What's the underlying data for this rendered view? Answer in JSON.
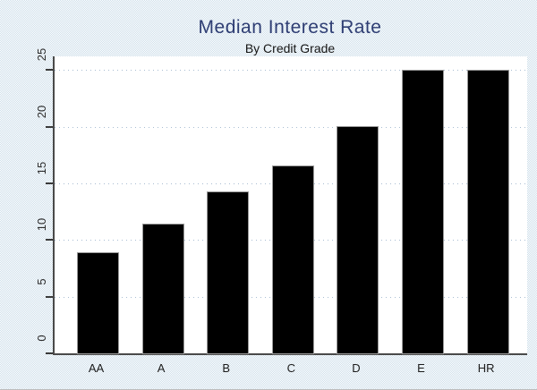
{
  "window": {
    "background_tint": "#cddeea",
    "plot_background": "#ffffff",
    "axis_color": "#4a4a4a",
    "gridline_color": "#a9bdd2",
    "title_color": "#2e3d73"
  },
  "chart_data": {
    "type": "bar",
    "title": "Median Interest Rate",
    "subtitle": "By Credit Grade",
    "categories": [
      "AA",
      "A",
      "B",
      "C",
      "D",
      "E",
      "HR"
    ],
    "values": [
      8.8,
      11.4,
      14.2,
      16.5,
      20.0,
      24.9,
      24.9
    ],
    "xlabel": "",
    "ylabel": "",
    "ylim": [
      0,
      26.2
    ],
    "yticks": [
      0,
      5,
      10,
      15,
      20,
      25
    ],
    "bar_color": "#000000",
    "grid": "dotted horizontal lines at major y ticks",
    "legend_position": "none",
    "y_tick_labels_rotated": true
  }
}
